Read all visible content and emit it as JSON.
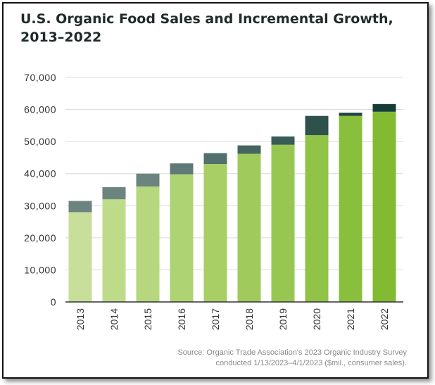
{
  "title": {
    "line1": "U.S. Organic Food Sales and Incremental Growth,",
    "line2": "2013–2022"
  },
  "source": {
    "line1": "Source: Organic Trade Association's 2023 Organic Industry Survey",
    "line2": "conducted 1/13/2023–4/1/2023 ($mil., consumer sales)."
  },
  "colors": {
    "grid": "#d9d9d9",
    "axis": "#333333",
    "tick_text": "#333333",
    "base_bars": [
      "#c7df9b",
      "#bedb8a",
      "#b6d77d",
      "#aed372",
      "#a7cf66",
      "#a0cb5c",
      "#98c751",
      "#90c347",
      "#89bf3c",
      "#82bb32"
    ],
    "increment_bars": [
      "#6b8480",
      "#6b8480",
      "#6b8480",
      "#5f7a76",
      "#52706c",
      "#45655f",
      "#3a5c57",
      "#2e514c",
      "#214641",
      "#143d37"
    ]
  },
  "chart_data": {
    "type": "bar",
    "stacked": true,
    "categories": [
      "2013",
      "2014",
      "2015",
      "2016",
      "2017",
      "2018",
      "2019",
      "2020",
      "2021",
      "2022"
    ],
    "series": [
      {
        "values": [
          28000,
          32000,
          36000,
          39800,
          43000,
          46200,
          49000,
          52000,
          58000,
          59300
        ]
      },
      {
        "values": [
          3500,
          3800,
          4000,
          3400,
          3400,
          2600,
          2600,
          6000,
          1000,
          2400
        ]
      }
    ],
    "title": "U.S. Organic Food Sales and Incremental Growth, 2013–2022",
    "xlabel": "",
    "ylabel": "",
    "ylim": [
      0,
      70000
    ],
    "yticks": [
      0,
      10000,
      20000,
      30000,
      40000,
      50000,
      60000,
      70000
    ],
    "ytick_labels": [
      "0",
      "10,000",
      "20,000",
      "30,000",
      "40,000",
      "50,000",
      "60,000",
      "70,000"
    ],
    "grid": true,
    "legend": "none"
  }
}
